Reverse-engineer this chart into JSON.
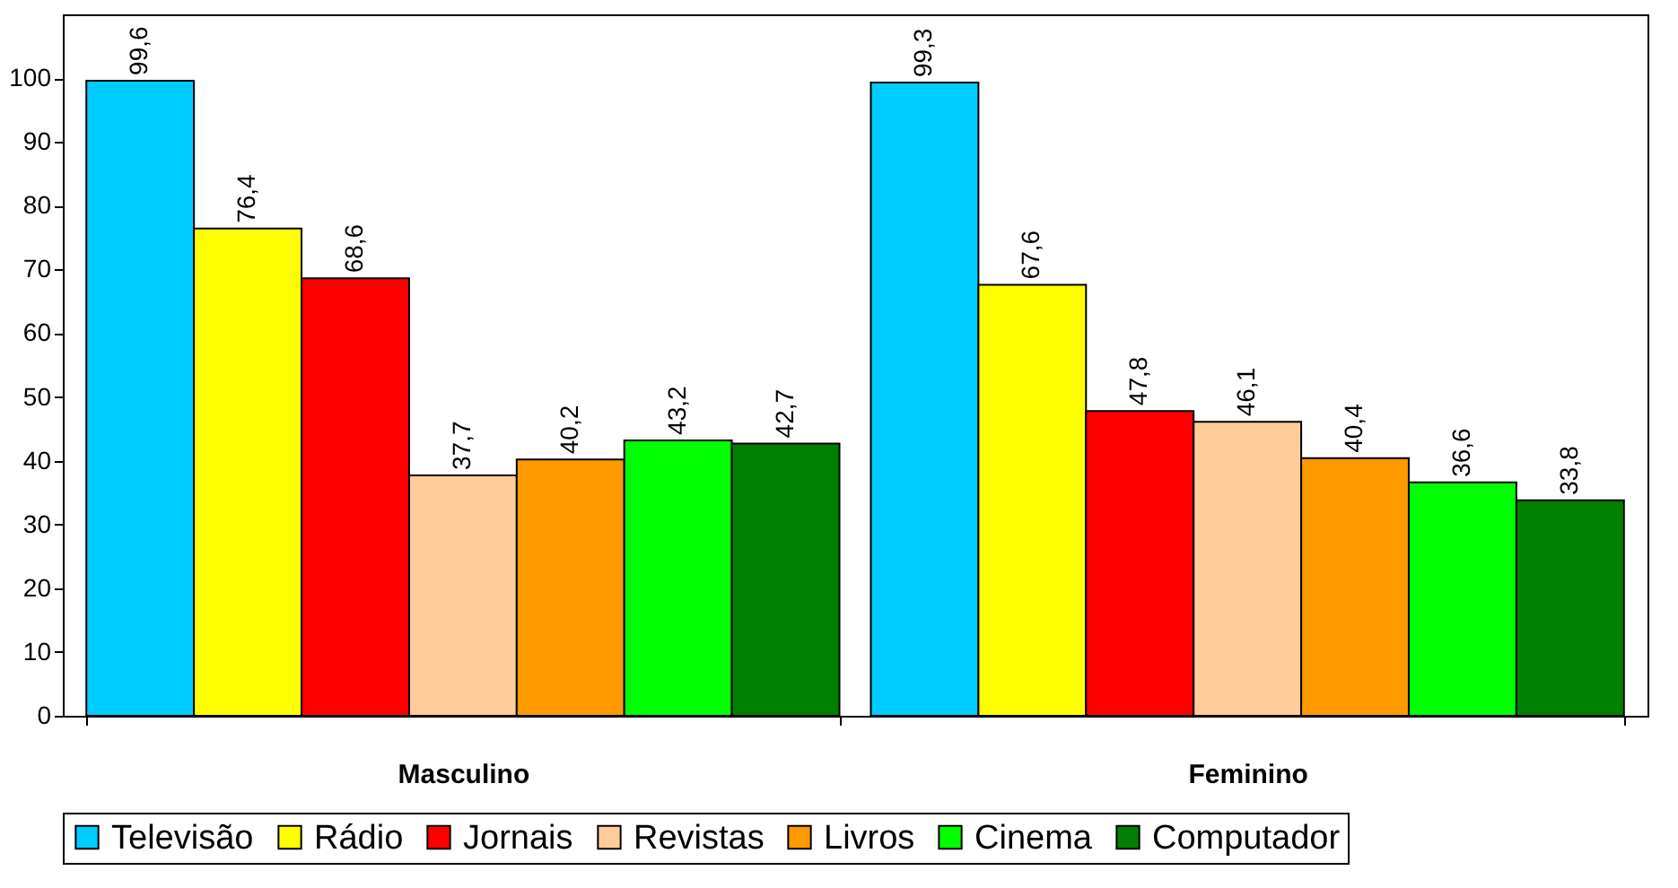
{
  "chart_data": {
    "type": "bar",
    "categories": [
      "Masculino",
      "Feminino"
    ],
    "series": [
      {
        "name": "Televisão",
        "color": "#00ccff",
        "values": [
          99.6,
          99.3
        ],
        "value_labels": [
          "99,6",
          "99,3"
        ]
      },
      {
        "name": "Rádio",
        "color": "#ffff00",
        "values": [
          76.4,
          67.6
        ],
        "value_labels": [
          "76,4",
          "67,6"
        ]
      },
      {
        "name": "Jornais",
        "color": "#ff0000",
        "values": [
          68.6,
          47.8
        ],
        "value_labels": [
          "68,6",
          "47,8"
        ]
      },
      {
        "name": "Revistas",
        "color": "#ffcc99",
        "values": [
          37.7,
          46.1
        ],
        "value_labels": [
          "37,7",
          "46,1"
        ]
      },
      {
        "name": "Livros",
        "color": "#ff9900",
        "values": [
          40.2,
          40.4
        ],
        "value_labels": [
          "40,2",
          "40,4"
        ]
      },
      {
        "name": "Cinema",
        "color": "#00ff00",
        "values": [
          43.2,
          36.6
        ],
        "value_labels": [
          "43,2",
          "36,6"
        ]
      },
      {
        "name": "Computador",
        "color": "#008000",
        "values": [
          42.7,
          33.8
        ],
        "value_labels": [
          "42,7",
          "33,8"
        ]
      }
    ],
    "ylim": [
      0,
      110
    ],
    "yticks": [
      0,
      10,
      20,
      30,
      40,
      50,
      60,
      70,
      80,
      90,
      100
    ],
    "grid": false,
    "legend": "bottom"
  }
}
